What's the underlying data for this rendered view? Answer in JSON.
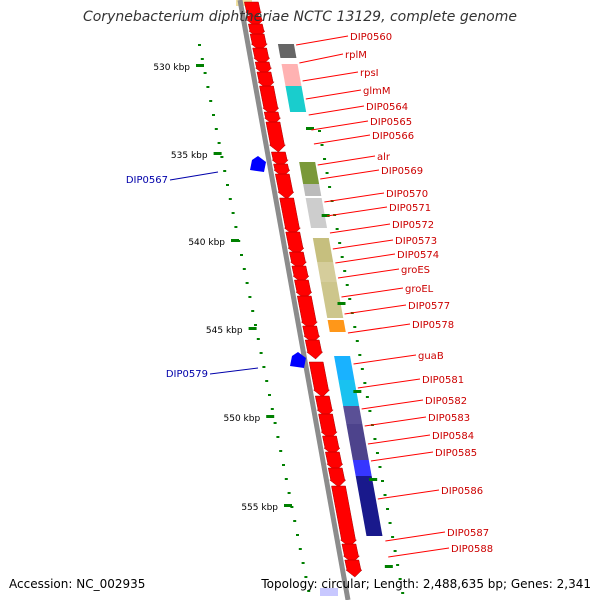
{
  "title": "Corynebacterium diphtheriae NCTC 13129, complete genome",
  "footer": {
    "accession": "Accession: NC_002935",
    "topology": "Topology: circular; Length: 2,488,635 bp; Genes: 2,341"
  },
  "colors": {
    "cds_red": "#ff0000",
    "label_red": "#cc0000",
    "label_blue": "#0000aa",
    "gene_blue": "#0000ff",
    "backbone": "#8c8c8c",
    "tick_green": "#008000"
  },
  "scale_labels": [
    "530 kbp",
    "535 kbp",
    "540 kbp",
    "545 kbp",
    "550 kbp",
    "555 kbp"
  ],
  "left_genes": [
    {
      "name": "DIP0567"
    },
    {
      "name": "DIP0579"
    }
  ],
  "right_genes": [
    {
      "name": "DIP0560",
      "cog": "#555555"
    },
    {
      "name": "rplM",
      "cog": "#ffaaaa"
    },
    {
      "name": "rpsI",
      "cog": "#ff8080"
    },
    {
      "name": "glmM",
      "cog": "#00c8c8"
    },
    {
      "name": "DIP0564",
      "cog": ""
    },
    {
      "name": "DIP0565",
      "cog": ""
    },
    {
      "name": "DIP0566",
      "cog": ""
    },
    {
      "name": "alr",
      "cog": "#6b8e23"
    },
    {
      "name": "DIP0569",
      "cog": "#b4b4b4"
    },
    {
      "name": "DIP0570",
      "cog": "#c8c8c8"
    },
    {
      "name": "DIP0571",
      "cog": ""
    },
    {
      "name": "DIP0572",
      "cog": "#c0b870"
    },
    {
      "name": "DIP0573",
      "cog": "#d0c890"
    },
    {
      "name": "DIP0574",
      "cog": "#c8c08c"
    },
    {
      "name": "groES",
      "cog": "#c8c080"
    },
    {
      "name": "groEL",
      "cog": "#c0b878"
    },
    {
      "name": "DIP0577",
      "cog": ""
    },
    {
      "name": "DIP0578",
      "cog": "#ff8c00"
    },
    {
      "name": "guaB",
      "cog": "#00aaff"
    },
    {
      "name": "DIP0581",
      "cog": "#00bbee"
    },
    {
      "name": "DIP0582",
      "cog": "#483d8b"
    },
    {
      "name": "DIP0583",
      "cog": "#4b3b90"
    },
    {
      "name": "DIP0584",
      "cog": "#3a2f80"
    },
    {
      "name": "DIP0585",
      "cog": "#2020ff"
    },
    {
      "name": "DIP0586",
      "cog": "#000080"
    },
    {
      "name": "DIP0587",
      "cog": ""
    },
    {
      "name": "DIP0588",
      "cog": ""
    }
  ]
}
